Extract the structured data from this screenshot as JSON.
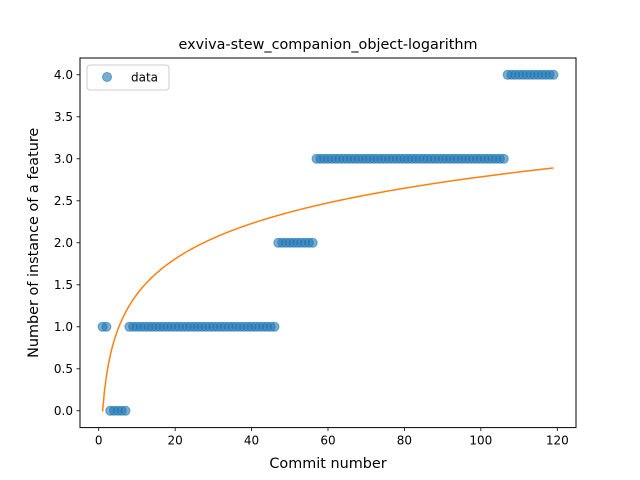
{
  "chart_data": {
    "type": "scatter",
    "title": "exviva-stew_companion_object-logarithm",
    "xlabel": "Commit number",
    "ylabel": "Number of instance of a feature",
    "xlim": [
      -4.9,
      124.9
    ],
    "ylim": [
      -0.2,
      4.2
    ],
    "xticks": [
      0,
      20,
      40,
      60,
      80,
      100,
      120
    ],
    "yticks": [
      0.0,
      0.5,
      1.0,
      1.5,
      2.0,
      2.5,
      3.0,
      3.5,
      4.0
    ],
    "ytick_labels": [
      "0.0",
      "0.5",
      "1.0",
      "1.5",
      "2.0",
      "2.5",
      "3.0",
      "3.5",
      "4.0"
    ],
    "legend": {
      "position": "top-left",
      "entries": [
        {
          "label": "data",
          "marker": "circle",
          "color": "#1f77b4"
        }
      ]
    },
    "series": [
      {
        "name": "data",
        "kind": "scatter",
        "color": "#1f77b4",
        "x": [
          1,
          2,
          3,
          4,
          5,
          6,
          7,
          8,
          9,
          10,
          11,
          12,
          13,
          14,
          15,
          16,
          17,
          18,
          19,
          20,
          21,
          22,
          23,
          24,
          25,
          26,
          27,
          28,
          29,
          30,
          31,
          32,
          33,
          34,
          35,
          36,
          37,
          38,
          39,
          40,
          41,
          42,
          43,
          44,
          45,
          46,
          47,
          48,
          49,
          50,
          51,
          52,
          53,
          54,
          55,
          56,
          57,
          58,
          59,
          60,
          61,
          62,
          63,
          64,
          65,
          66,
          67,
          68,
          69,
          70,
          71,
          72,
          73,
          74,
          75,
          76,
          77,
          78,
          79,
          80,
          81,
          82,
          83,
          84,
          85,
          86,
          87,
          88,
          89,
          90,
          91,
          92,
          93,
          94,
          95,
          96,
          97,
          98,
          99,
          100,
          101,
          102,
          103,
          104,
          105,
          106,
          107,
          108,
          109,
          110,
          111,
          112,
          113,
          114,
          115,
          116,
          117,
          118,
          119
        ],
        "y": [
          1,
          1,
          0,
          0,
          0,
          0,
          0,
          1,
          1,
          1,
          1,
          1,
          1,
          1,
          1,
          1,
          1,
          1,
          1,
          1,
          1,
          1,
          1,
          1,
          1,
          1,
          1,
          1,
          1,
          1,
          1,
          1,
          1,
          1,
          1,
          1,
          1,
          1,
          1,
          1,
          1,
          1,
          1,
          1,
          1,
          1,
          2,
          2,
          2,
          2,
          2,
          2,
          2,
          2,
          2,
          2,
          3,
          3,
          3,
          3,
          3,
          3,
          3,
          3,
          3,
          3,
          3,
          3,
          3,
          3,
          3,
          3,
          3,
          3,
          3,
          3,
          3,
          3,
          3,
          3,
          3,
          3,
          3,
          3,
          3,
          3,
          3,
          3,
          3,
          3,
          3,
          3,
          3,
          3,
          3,
          3,
          3,
          3,
          3,
          3,
          3,
          3,
          3,
          3,
          3,
          3,
          4,
          4,
          4,
          4,
          4,
          4,
          4,
          4,
          4,
          4,
          4,
          4,
          4
        ]
      },
      {
        "name": "logarithmic fit",
        "kind": "line",
        "color": "#ff7f0e",
        "model": "y = a + b*ln(x)",
        "a": -0.01,
        "b": 0.607,
        "x_range": [
          1,
          119
        ]
      }
    ]
  }
}
